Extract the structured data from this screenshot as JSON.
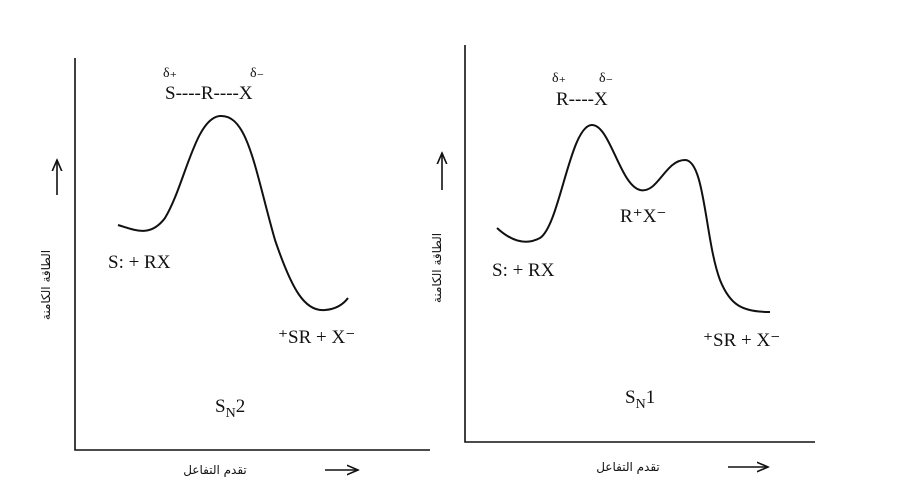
{
  "left": {
    "delta_plus": "δ₊",
    "delta_minus": "δ₋",
    "transition": "S----R----X",
    "reactants": "S: + RX",
    "products": "⁺SR + X⁻",
    "mechanism": {
      "letter": "S",
      "sub": "N",
      "order": "2"
    },
    "y_label": "الطاقة الكامنة",
    "x_label": "تقدم التفاعل"
  },
  "right": {
    "delta_plus": "δ₊",
    "delta_minus": "δ₋",
    "transition": "R----X",
    "intermediate": "R⁺X⁻",
    "reactants": "S: + RX",
    "products": "⁺SR + X⁻",
    "mechanism": {
      "letter": "S",
      "sub": "N",
      "order": "1"
    },
    "y_label": "الطاقة الكامنة",
    "x_label": "تقدم التفاعل"
  }
}
